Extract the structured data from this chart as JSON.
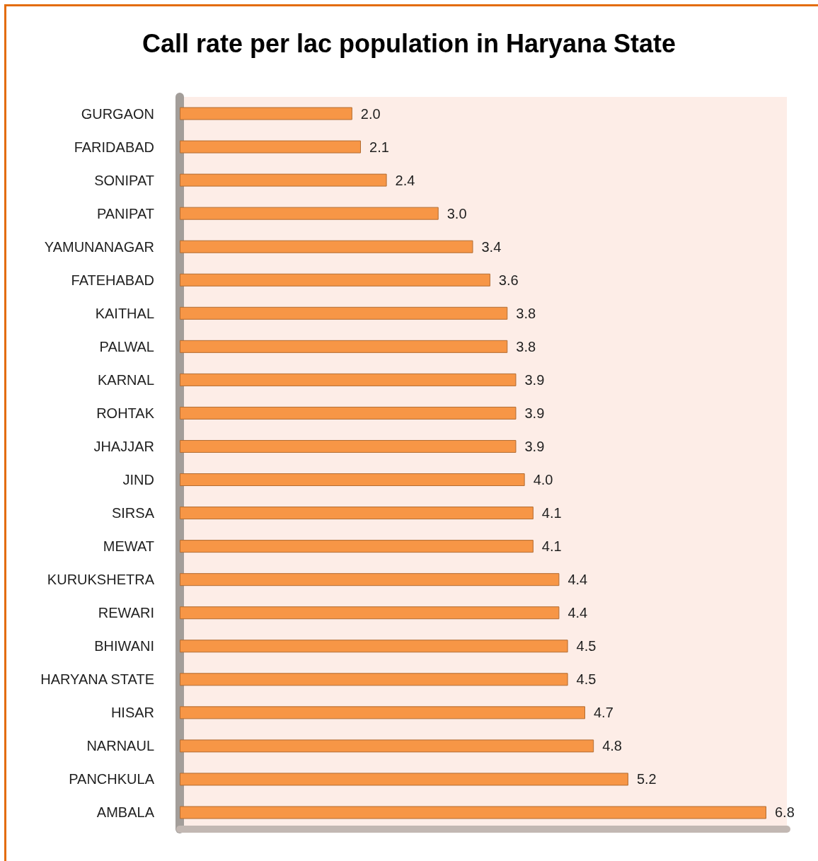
{
  "chart_data": {
    "type": "bar",
    "orientation": "horizontal",
    "title": "Call rate per lac population in Haryana State",
    "categories": [
      "GURGAON",
      "FARIDABAD",
      "SONIPAT",
      "PANIPAT",
      "YAMUNANAGAR",
      "FATEHABAD",
      "KAITHAL",
      "PALWAL",
      "KARNAL",
      "ROHTAK",
      "JHAJJAR",
      "JIND",
      "SIRSA",
      "MEWAT",
      "KURUKSHETRA",
      "REWARI",
      "BHIWANI",
      "HARYANA STATE",
      "HISAR",
      "NARNAUL",
      "PANCHKULA",
      "AMBALA"
    ],
    "values": [
      2.0,
      2.1,
      2.4,
      3.0,
      3.4,
      3.6,
      3.8,
      3.8,
      3.9,
      3.9,
      3.9,
      4.0,
      4.1,
      4.1,
      4.4,
      4.4,
      4.5,
      4.5,
      4.7,
      4.8,
      5.2,
      6.8
    ],
    "value_labels": [
      "2.0",
      "2.1",
      "2.4",
      "3.0",
      "3.4",
      "3.6",
      "3.8",
      "3.8",
      "3.9",
      "3.9",
      "3.9",
      "4.0",
      "4.1",
      "4.1",
      "4.4",
      "4.4",
      "4.5",
      "4.5",
      "4.7",
      "4.8",
      "5.2",
      "6.8"
    ],
    "color": "#f79646",
    "tick_labels": "y"
  }
}
